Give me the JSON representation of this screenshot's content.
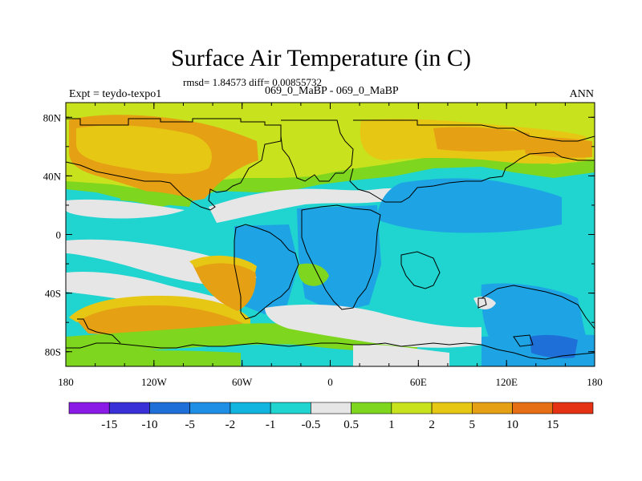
{
  "title": "Surface Air Temperature (in C)",
  "stats": "rmsd= 1.84573 diff= 0.00855732",
  "experiment_label": "Expt = teydo-texpo1",
  "comparison": "069_0_MaBP - 069_0_MaBP",
  "season": "ANN",
  "map": {
    "projection": "cylindrical-equidistant",
    "lon_range": [
      -180,
      180
    ],
    "lat_range": [
      -90,
      90
    ],
    "x_ticks": [
      "180",
      "120W",
      "60W",
      "0",
      "60E",
      "120E",
      "180"
    ],
    "y_ticks": [
      "80N",
      "40N",
      "0",
      "40S",
      "80S"
    ],
    "colors": {
      "c_m15": "#8a1ae6",
      "c_m10": "#3a30d8",
      "c_m5": "#1e6fd8",
      "c_m2": "#1ea4e4",
      "c_m1": "#12c0d8",
      "c_m05": "#20d8cc",
      "c_zero": "#e6e6e6",
      "c_05": "#7ed61e",
      "c_1": "#c8e21e",
      "c_2": "#e6c814",
      "c_5": "#e6a014",
      "c_10": "#e66e14",
      "c_15": "#e63214"
    }
  },
  "colorbar": {
    "labels": [
      "-15",
      "-10",
      "-5",
      "-2",
      "-1",
      "-0.5",
      "0.5",
      "1",
      "2",
      "5",
      "10",
      "15"
    ],
    "colors": [
      "#8a1ae6",
      "#3a30d8",
      "#1e6fd8",
      "#1e8fe4",
      "#12b4e0",
      "#20d4d0",
      "#e6e6e6",
      "#7ed61e",
      "#c8e21e",
      "#e6c814",
      "#e6a014",
      "#e66e14",
      "#e63214"
    ]
  }
}
